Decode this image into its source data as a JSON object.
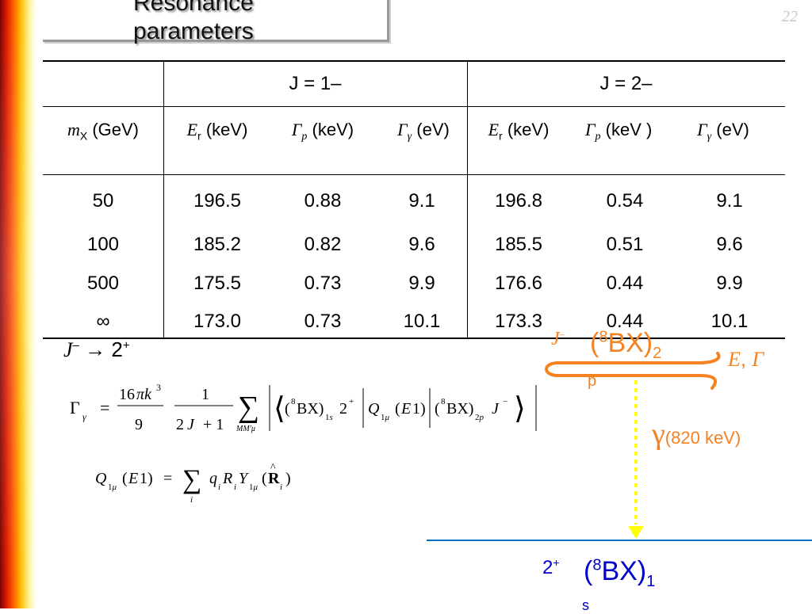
{
  "page": {
    "number": "22"
  },
  "title": {
    "line1": "Resonance",
    "line2": "parameters"
  },
  "table": {
    "group_headers": [
      "J = 1–",
      "J = 2–"
    ],
    "rows": [
      [
        "50",
        "196.5",
        "0.88",
        "9.1",
        "196.8",
        "0.54",
        "9.1"
      ],
      [
        "100",
        "185.2",
        "0.82",
        "9.6",
        "185.5",
        "0.51",
        "9.6"
      ],
      [
        "500",
        "175.5",
        "0.73",
        "9.9",
        "176.6",
        "0.44",
        "9.9"
      ],
      [
        "∞",
        "173.0",
        "0.73",
        "10.1",
        "173.3",
        "0.44",
        "10.1"
      ]
    ]
  },
  "formulas": {
    "transition_label": "J– → 2+"
  },
  "level_diagram": {
    "upper_j": "J–",
    "upper_state": "(8BX)2",
    "p_label": "p",
    "width_label": "E, Γ",
    "gamma_label": "γ",
    "gamma_energy": "(820 keV)",
    "lower_j": "2+",
    "lower_state": "(8BX)1",
    "lower_extra": "s",
    "colors": {
      "orange": "#f58220",
      "blue": "#0070c0",
      "yellow": "#ffff00"
    }
  }
}
